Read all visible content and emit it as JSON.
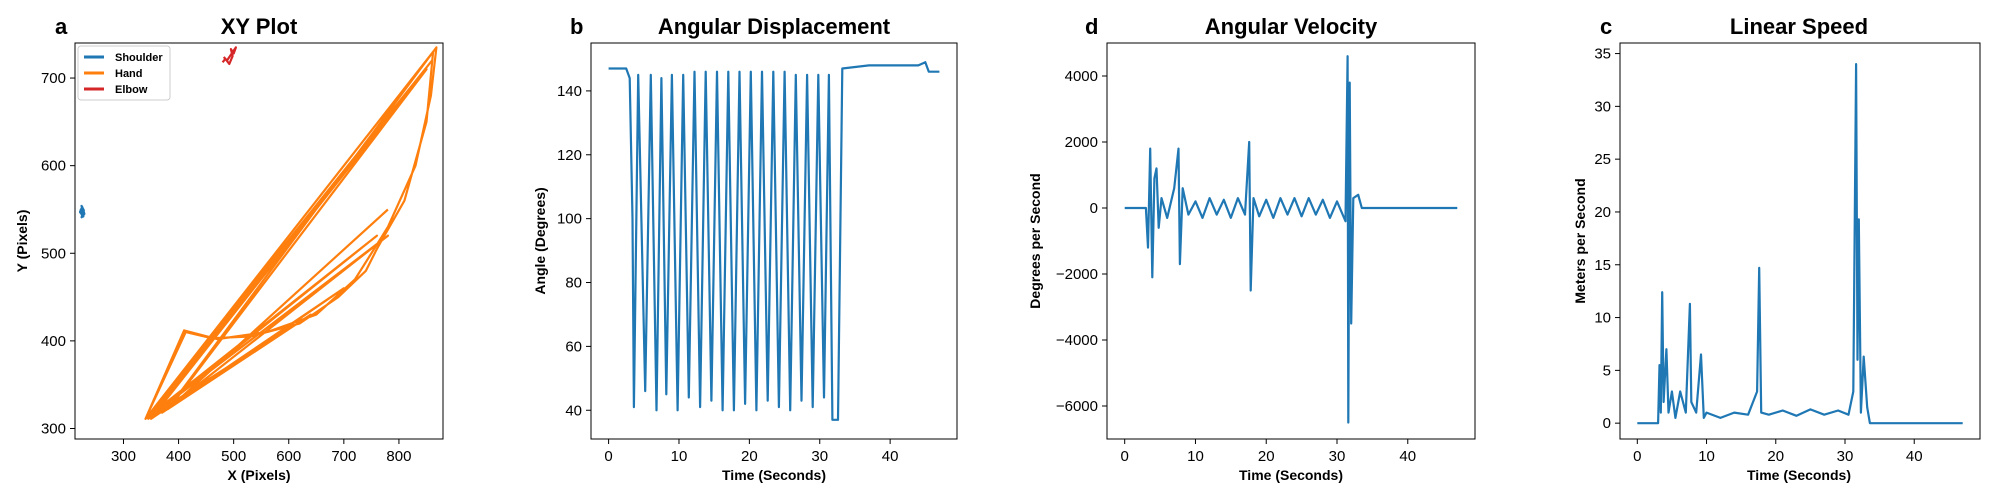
{
  "panels": [
    {
      "letter": "a",
      "title": "XY Plot",
      "xlabel": "X (Pixels)",
      "ylabel": "Y (Pixels)",
      "xticks": [
        300,
        400,
        500,
        600,
        700,
        800
      ],
      "yticks": [
        300,
        400,
        500,
        600,
        700
      ],
      "legend": [
        "Shoulder",
        "Hand",
        "Elbow"
      ]
    },
    {
      "letter": "b",
      "title": "Angular Displacement",
      "xlabel": "Time (Seconds)",
      "ylabel": "Angle (Degrees)",
      "xticks": [
        0,
        10,
        20,
        30,
        40
      ],
      "yticks": [
        40,
        60,
        80,
        100,
        120,
        140
      ]
    },
    {
      "letter": "d",
      "title": "Angular Velocity",
      "xlabel": "Time (Seconds)",
      "ylabel": "Degrees per Second",
      "xticks": [
        0,
        10,
        20,
        30,
        40
      ],
      "yticks": [
        -6000,
        -4000,
        -2000,
        0,
        2000,
        4000
      ]
    },
    {
      "letter": "c",
      "title": "Linear Speed",
      "xlabel": "Time (Seconds)",
      "ylabel": "Meters per Second",
      "xticks": [
        0,
        10,
        20,
        30,
        40
      ],
      "yticks": [
        0,
        5,
        10,
        15,
        20,
        25,
        30,
        35
      ]
    }
  ],
  "chart_data": [
    {
      "type": "line",
      "title": "XY Plot",
      "xlabel": "X (Pixels)",
      "ylabel": "Y (Pixels)",
      "xlim": [
        212,
        880
      ],
      "ylim": [
        288,
        740
      ],
      "grid": false,
      "legend_position": "top-left",
      "series": [
        {
          "name": "Shoulder",
          "color": "#1f77b4",
          "points": [
            [
              222,
              551
            ],
            [
              226,
              546
            ],
            [
              224,
              541
            ],
            [
              229,
              545
            ],
            [
              225,
              553
            ],
            [
              221,
              547
            ],
            [
              227,
              542
            ],
            [
              228,
              549
            ],
            [
              223,
              555
            ]
          ]
        },
        {
          "name": "Hand",
          "color": "#ff7f0e",
          "points": [
            [
              340,
              311
            ],
            [
              413,
              410
            ],
            [
              460,
              403
            ],
            [
              530,
              405
            ],
            [
              620,
              420
            ],
            [
              690,
              450
            ],
            [
              740,
              480
            ],
            [
              760,
              505
            ],
            [
              810,
              560
            ],
            [
              850,
              650
            ],
            [
              862,
              730
            ],
            [
              340,
              311
            ],
            [
              860,
              720
            ],
            [
              345,
              311
            ],
            [
              760,
              520
            ],
            [
              340,
              311
            ],
            [
              410,
              412
            ],
            [
              470,
              402
            ],
            [
              560,
              410
            ],
            [
              650,
              430
            ],
            [
              720,
              470
            ],
            [
              780,
              530
            ],
            [
              830,
              600
            ],
            [
              858,
              680
            ],
            [
              868,
              735
            ],
            [
              380,
              322
            ],
            [
              640,
              430
            ],
            [
              370,
              318
            ],
            [
              700,
              460
            ],
            [
              350,
              311
            ],
            [
              850,
              710
            ],
            [
              385,
              325
            ],
            [
              600,
              415
            ],
            [
              345,
              312
            ],
            [
              780,
              520
            ],
            [
              395,
              330
            ],
            [
              780,
              550
            ]
          ]
        },
        {
          "name": "Elbow",
          "color": "#d62728",
          "points": [
            [
              480,
              718
            ],
            [
              485,
              722
            ],
            [
              492,
              716
            ],
            [
              498,
              725
            ],
            [
              495,
              733
            ],
            [
              500,
              728
            ],
            [
              504,
              735
            ],
            [
              488,
              720
            ],
            [
              482,
              724
            ]
          ]
        }
      ]
    },
    {
      "type": "line",
      "title": "Angular Displacement",
      "xlabel": "Time (Seconds)",
      "ylabel": "Angle (Degrees)",
      "xlim": [
        -2.5,
        49.5
      ],
      "ylim": [
        31,
        155
      ],
      "grid": false,
      "series": [
        {
          "color": "#1f77b4",
          "points": [
            [
              0,
              147
            ],
            [
              2.5,
              147
            ],
            [
              3,
              144
            ],
            [
              3.4,
              100
            ],
            [
              3.6,
              41
            ],
            [
              4.2,
              145
            ],
            [
              5.2,
              46
            ],
            [
              6.0,
              145
            ],
            [
              6.8,
              40
            ],
            [
              7.5,
              144
            ],
            [
              8.2,
              45
            ],
            [
              9.0,
              145
            ],
            [
              9.8,
              40
            ],
            [
              10.6,
              145
            ],
            [
              11.4,
              44
            ],
            [
              12.2,
              146
            ],
            [
              13.0,
              41
            ],
            [
              13.8,
              146
            ],
            [
              14.6,
              43
            ],
            [
              15.4,
              146
            ],
            [
              16.2,
              40
            ],
            [
              17.0,
              146
            ],
            [
              17.8,
              40
            ],
            [
              18.6,
              146
            ],
            [
              19.4,
              42
            ],
            [
              20.2,
              146
            ],
            [
              21.0,
              40
            ],
            [
              21.8,
              146
            ],
            [
              22.6,
              43
            ],
            [
              23.4,
              146
            ],
            [
              24.2,
              41
            ],
            [
              25.0,
              146
            ],
            [
              25.8,
              40
            ],
            [
              26.6,
              145
            ],
            [
              27.4,
              43
            ],
            [
              28.2,
              145
            ],
            [
              29.0,
              41
            ],
            [
              29.8,
              145
            ],
            [
              30.6,
              44
            ],
            [
              31.3,
              145
            ],
            [
              31.8,
              37
            ],
            [
              32.6,
              37
            ],
            [
              33.2,
              147
            ],
            [
              37,
              148
            ],
            [
              44,
              148
            ],
            [
              45,
              149
            ],
            [
              45.5,
              146
            ],
            [
              47,
              146
            ]
          ]
        }
      ]
    },
    {
      "type": "line",
      "title": "Angular Velocity",
      "xlabel": "Time (Seconds)",
      "ylabel": "Degrees per Second",
      "xlim": [
        -2.5,
        49.5
      ],
      "ylim": [
        -7000,
        5000
      ],
      "grid": false,
      "series": [
        {
          "color": "#1f77b4",
          "points": [
            [
              0,
              0
            ],
            [
              3.0,
              0
            ],
            [
              3.3,
              -1200
            ],
            [
              3.6,
              1800
            ],
            [
              3.9,
              -2100
            ],
            [
              4.2,
              900
            ],
            [
              4.5,
              1200
            ],
            [
              4.8,
              -600
            ],
            [
              5.2,
              300
            ],
            [
              6,
              -300
            ],
            [
              7,
              600
            ],
            [
              7.6,
              1800
            ],
            [
              7.8,
              -1700
            ],
            [
              8.2,
              600
            ],
            [
              9,
              -200
            ],
            [
              10,
              200
            ],
            [
              11,
              -300
            ],
            [
              12,
              300
            ],
            [
              13,
              -200
            ],
            [
              14,
              250
            ],
            [
              15,
              -300
            ],
            [
              16,
              300
            ],
            [
              17,
              -200
            ],
            [
              17.6,
              2000
            ],
            [
              17.8,
              -2500
            ],
            [
              18.2,
              300
            ],
            [
              19,
              -250
            ],
            [
              20,
              250
            ],
            [
              21,
              -300
            ],
            [
              22,
              300
            ],
            [
              23,
              -200
            ],
            [
              24,
              300
            ],
            [
              25,
              -250
            ],
            [
              26,
              300
            ],
            [
              27,
              -200
            ],
            [
              28,
              250
            ],
            [
              29,
              -300
            ],
            [
              30,
              200
            ],
            [
              31.2,
              -400
            ],
            [
              31.5,
              4600
            ],
            [
              31.6,
              -6500
            ],
            [
              31.8,
              3800
            ],
            [
              32,
              -3500
            ],
            [
              32.3,
              300
            ],
            [
              33,
              400
            ],
            [
              33.5,
              0
            ],
            [
              46,
              0
            ],
            [
              47,
              0
            ]
          ]
        }
      ]
    },
    {
      "type": "line",
      "title": "Linear Speed",
      "xlabel": "Time (Seconds)",
      "ylabel": "Meters per Second",
      "xlim": [
        -2.5,
        49.5
      ],
      "ylim": [
        -1.5,
        36
      ],
      "grid": false,
      "series": [
        {
          "color": "#1f77b4",
          "points": [
            [
              0,
              0
            ],
            [
              3.0,
              0
            ],
            [
              3.2,
              5.5
            ],
            [
              3.4,
              1
            ],
            [
              3.6,
              12.4
            ],
            [
              3.8,
              2
            ],
            [
              4.2,
              7
            ],
            [
              4.5,
              1
            ],
            [
              5,
              3
            ],
            [
              5.5,
              0.5
            ],
            [
              6.2,
              3
            ],
            [
              7,
              1
            ],
            [
              7.6,
              11.3
            ],
            [
              7.8,
              2
            ],
            [
              8.5,
              1
            ],
            [
              9.2,
              6.5
            ],
            [
              9.6,
              0.5
            ],
            [
              10,
              1
            ],
            [
              12,
              0.5
            ],
            [
              14,
              1
            ],
            [
              16,
              0.8
            ],
            [
              17.3,
              3
            ],
            [
              17.6,
              14.7
            ],
            [
              17.9,
              1
            ],
            [
              19,
              0.8
            ],
            [
              21,
              1.2
            ],
            [
              23,
              0.7
            ],
            [
              25,
              1.3
            ],
            [
              27,
              0.8
            ],
            [
              29,
              1.2
            ],
            [
              30.5,
              0.8
            ],
            [
              31.2,
              3
            ],
            [
              31.6,
              34
            ],
            [
              31.8,
              6
            ],
            [
              32,
              19.3
            ],
            [
              32.3,
              1
            ],
            [
              32.7,
              6.3
            ],
            [
              33.2,
              1.5
            ],
            [
              33.6,
              0
            ],
            [
              47,
              0
            ]
          ]
        }
      ]
    }
  ]
}
